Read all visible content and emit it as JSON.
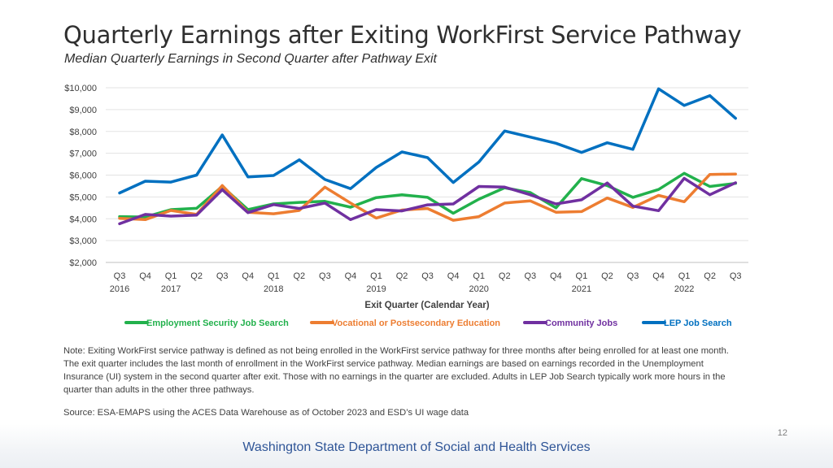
{
  "header": {
    "title": "Quarterly Earnings after Exiting WorkFirst Service Pathway",
    "subtitle": "Median Quarterly Earnings in Second Quarter after Pathway Exit"
  },
  "chart_data": {
    "type": "line",
    "xlabel": "Exit Quarter (Calendar Year)",
    "ylabel": "",
    "ylim": [
      2000,
      10000
    ],
    "yticks": [
      2000,
      3000,
      4000,
      5000,
      6000,
      7000,
      8000,
      9000,
      10000
    ],
    "ytick_labels": [
      "$2,000",
      "$3,000",
      "$4,000",
      "$5,000",
      "$6,000",
      "$7,000",
      "$8,000",
      "$9,000",
      "$10,000"
    ],
    "grid": true,
    "legend_position": "bottom",
    "categories": [
      "Q3",
      "Q4",
      "Q1",
      "Q2",
      "Q3",
      "Q4",
      "Q1",
      "Q2",
      "Q3",
      "Q4",
      "Q1",
      "Q2",
      "Q3",
      "Q4",
      "Q1",
      "Q2",
      "Q3",
      "Q4",
      "Q1",
      "Q2",
      "Q3",
      "Q4",
      "Q1",
      "Q2",
      "Q3"
    ],
    "year_labels": [
      {
        "index": 0,
        "label": "2016"
      },
      {
        "index": 2,
        "label": "2017"
      },
      {
        "index": 6,
        "label": "2018"
      },
      {
        "index": 10,
        "label": "2019"
      },
      {
        "index": 14,
        "label": "2020"
      },
      {
        "index": 18,
        "label": "2021"
      },
      {
        "index": 22,
        "label": "2022"
      }
    ],
    "series": [
      {
        "name": "Employment Security Job Search",
        "color": "#22b14c",
        "values": [
          4100,
          4080,
          4420,
          4480,
          5480,
          4420,
          4680,
          4750,
          4800,
          4530,
          4970,
          5100,
          4980,
          4250,
          4900,
          5420,
          5200,
          4500,
          5840,
          5520,
          4980,
          5340,
          6080,
          5480,
          5620
        ]
      },
      {
        "name": "Vocational or Postsecondary Education",
        "color": "#ed7d31",
        "values": [
          4020,
          3960,
          4380,
          4200,
          5520,
          4300,
          4230,
          4380,
          5450,
          4720,
          4030,
          4400,
          4470,
          3930,
          4100,
          4720,
          4820,
          4300,
          4330,
          4950,
          4520,
          5070,
          4780,
          6030,
          6050
        ]
      },
      {
        "name": "Community Jobs",
        "color": "#7030a0",
        "values": [
          3770,
          4200,
          4120,
          4170,
          5330,
          4280,
          4650,
          4470,
          4720,
          3960,
          4420,
          4360,
          4640,
          4680,
          5480,
          5450,
          5100,
          4680,
          4870,
          5640,
          4580,
          4370,
          5850,
          5100,
          5650
        ]
      },
      {
        "name": "LEP Job Search",
        "color": "#0070c0",
        "values": [
          5180,
          5720,
          5680,
          6000,
          7840,
          5920,
          5980,
          6700,
          5800,
          5380,
          6350,
          7060,
          6800,
          5660,
          6600,
          8020,
          7740,
          7460,
          7040,
          7480,
          7180,
          9950,
          9190,
          9640,
          8600
        ]
      }
    ]
  },
  "note": "Note: Exiting WorkFirst service pathway is defined as not being enrolled in the WorkFirst service pathway for three months after being enrolled for at least one month. The exit quarter includes the last month of enrollment in the WorkFirst service pathway. Median earnings are based on earnings recorded in the Unemployment Insurance (UI) system in the second quarter after exit. Those with no earnings in the quarter are excluded. Adults in LEP Job Search typically work more hours in the quarter than adults in the other three pathways.",
  "source": "Source: ESA-EMAPS using the ACES Data Warehouse as of October 2023 and ESD’s UI wage data",
  "footer": {
    "page_number": "12",
    "organization": "Washington State Department of Social and Health Services"
  }
}
